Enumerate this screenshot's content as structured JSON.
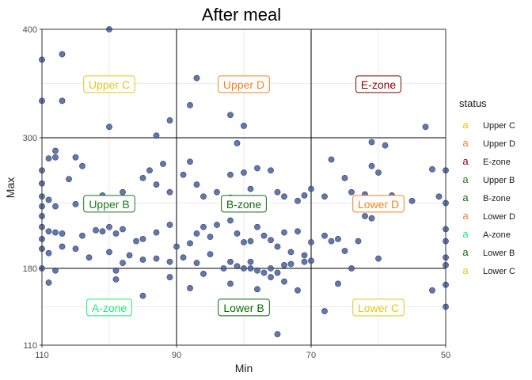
{
  "chart_data": {
    "type": "scatter",
    "title": "After meal",
    "xlabel": "Min",
    "ylabel": "Max",
    "x_reversed": true,
    "xlim": [
      110,
      50
    ],
    "x_ticks": [
      "110",
      "90",
      "70",
      "50"
    ],
    "y_ticks": [
      "400",
      "300",
      "180",
      "110"
    ],
    "y_tick_values": [
      400,
      300,
      180,
      110
    ],
    "x_breaks": [
      90,
      70
    ],
    "y_breaks": [
      300,
      180
    ],
    "grid": true,
    "legend_placement": "right",
    "point_color": "#4a5f9a",
    "legend": {
      "title": "status",
      "key_glyph": "a",
      "items": [
        {
          "label": "Upper C",
          "color": "#e6c619"
        },
        {
          "label": "Upper D",
          "color": "#f5821f"
        },
        {
          "label": "E-zone",
          "color": "#8b0000"
        },
        {
          "label": "Upper B",
          "color": "#1a7a1a"
        },
        {
          "label": "B-zone",
          "color": "#0f6b0f"
        },
        {
          "label": "Lower D",
          "color": "#f5821f"
        },
        {
          "label": "A-zone",
          "color": "#1aed7a"
        },
        {
          "label": "Lower B",
          "color": "#0a6b0a"
        },
        {
          "label": "Lower C",
          "color": "#e6c619"
        }
      ]
    },
    "zone_labels": [
      {
        "text": "Upper C",
        "x": 100,
        "y": 349,
        "color": "#e6c619"
      },
      {
        "text": "Upper D",
        "x": 80,
        "y": 349,
        "color": "#f5821f"
      },
      {
        "text": "E-zone",
        "x": 60,
        "y": 349,
        "color": "#8b0000"
      },
      {
        "text": "Upper B",
        "x": 100,
        "y": 239,
        "color": "#1a7a1a"
      },
      {
        "text": "B-zone",
        "x": 80,
        "y": 239,
        "color": "#0f6b0f"
      },
      {
        "text": "Lower D",
        "x": 60,
        "y": 239,
        "color": "#f5821f"
      },
      {
        "text": "A-zone",
        "x": 100,
        "y": 144,
        "color": "#1aed7a"
      },
      {
        "text": "Lower B",
        "x": 80,
        "y": 144,
        "color": "#0a6b0a"
      },
      {
        "text": "Lower C",
        "x": 60,
        "y": 144,
        "color": "#e6c619"
      }
    ],
    "points": [
      [
        100,
        400
      ],
      [
        110,
        372
      ],
      [
        107,
        377
      ],
      [
        107,
        334
      ],
      [
        110,
        334
      ],
      [
        100,
        310
      ],
      [
        91,
        316
      ],
      [
        93,
        302
      ],
      [
        88,
        330
      ],
      [
        87,
        355
      ],
      [
        82,
        321
      ],
      [
        80,
        311
      ],
      [
        81,
        295
      ],
      [
        53,
        310
      ],
      [
        61,
        296
      ],
      [
        59,
        293
      ],
      [
        108,
        288
      ],
      [
        108,
        282
      ],
      [
        109,
        281
      ],
      [
        105,
        282
      ],
      [
        104,
        274
      ],
      [
        110,
        270
      ],
      [
        106,
        262
      ],
      [
        110,
        258
      ],
      [
        110,
        246
      ],
      [
        109,
        243
      ],
      [
        110,
        237
      ],
      [
        108,
        237
      ],
      [
        105,
        239
      ],
      [
        103,
        238
      ],
      [
        102,
        242
      ],
      [
        101,
        247
      ],
      [
        98,
        250
      ],
      [
        97,
        244
      ],
      [
        95,
        263
      ],
      [
        94,
        270
      ],
      [
        92,
        276
      ],
      [
        93,
        257
      ],
      [
        91,
        250
      ],
      [
        89,
        266
      ],
      [
        88,
        278
      ],
      [
        87,
        257
      ],
      [
        86,
        246
      ],
      [
        84,
        250
      ],
      [
        82,
        266
      ],
      [
        82,
        245
      ],
      [
        80,
        268
      ],
      [
        79,
        253
      ],
      [
        78,
        272
      ],
      [
        76,
        270
      ],
      [
        75,
        250
      ],
      [
        74,
        246
      ],
      [
        72,
        242
      ],
      [
        71,
        247
      ],
      [
        70,
        253
      ],
      [
        68,
        246
      ],
      [
        67,
        280
      ],
      [
        65,
        263
      ],
      [
        64,
        250
      ],
      [
        62,
        248
      ],
      [
        61,
        274
      ],
      [
        60,
        268
      ],
      [
        58,
        247
      ],
      [
        55,
        242
      ],
      [
        52,
        271
      ],
      [
        50,
        270
      ],
      [
        51,
        246
      ],
      [
        50,
        240
      ],
      [
        110,
        228
      ],
      [
        110,
        218
      ],
      [
        109,
        214
      ],
      [
        108,
        213
      ],
      [
        107,
        212
      ],
      [
        110,
        207
      ],
      [
        104,
        210
      ],
      [
        102,
        215
      ],
      [
        101,
        214
      ],
      [
        100,
        218
      ],
      [
        99,
        212
      ],
      [
        98,
        216
      ],
      [
        96,
        205
      ],
      [
        95,
        207
      ],
      [
        93,
        213
      ],
      [
        91,
        220
      ],
      [
        90,
        200
      ],
      [
        88,
        203
      ],
      [
        87,
        212
      ],
      [
        86,
        218
      ],
      [
        85,
        209
      ],
      [
        84,
        220
      ],
      [
        82,
        224
      ],
      [
        81,
        212
      ],
      [
        80,
        204
      ],
      [
        79,
        205
      ],
      [
        78,
        218
      ],
      [
        77,
        210
      ],
      [
        76,
        206
      ],
      [
        75,
        200
      ],
      [
        74,
        213
      ],
      [
        73,
        195
      ],
      [
        72,
        214
      ],
      [
        71,
        192
      ],
      [
        70,
        204
      ],
      [
        68,
        210
      ],
      [
        67,
        205
      ],
      [
        66,
        207
      ],
      [
        65,
        196
      ],
      [
        63,
        205
      ],
      [
        62,
        228
      ],
      [
        61,
        226
      ],
      [
        50,
        205
      ],
      [
        50,
        216
      ],
      [
        110,
        198
      ],
      [
        109,
        194
      ],
      [
        107,
        200
      ],
      [
        105,
        198
      ],
      [
        103,
        190
      ],
      [
        100,
        195
      ],
      [
        98,
        185
      ],
      [
        97,
        192
      ],
      [
        95,
        188
      ],
      [
        93,
        189
      ],
      [
        91,
        186
      ],
      [
        89,
        190
      ],
      [
        87,
        185
      ],
      [
        85,
        193
      ],
      [
        83,
        180
      ],
      [
        82,
        186
      ],
      [
        81,
        182
      ],
      [
        80,
        180
      ],
      [
        79,
        186
      ],
      [
        78,
        178
      ],
      [
        76,
        180
      ],
      [
        75,
        176
      ],
      [
        74,
        183
      ],
      [
        73,
        184
      ],
      [
        71,
        186
      ],
      [
        70,
        187
      ],
      [
        64,
        180
      ],
      [
        60,
        189
      ],
      [
        50,
        183
      ],
      [
        50,
        190
      ],
      [
        110,
        180
      ],
      [
        108,
        178
      ],
      [
        109,
        167
      ],
      [
        99,
        170
      ],
      [
        91,
        172
      ],
      [
        86,
        175
      ],
      [
        88,
        162
      ],
      [
        82,
        166
      ],
      [
        79,
        180
      ],
      [
        77,
        176
      ],
      [
        76,
        172
      ],
      [
        74,
        168
      ],
      [
        66,
        166
      ],
      [
        52,
        160
      ],
      [
        50,
        165
      ],
      [
        95,
        155
      ],
      [
        81,
        148
      ],
      [
        77,
        142
      ],
      [
        75,
        120
      ],
      [
        68,
        141
      ],
      [
        62,
        146
      ],
      [
        58,
        143
      ],
      [
        50,
        145
      ],
      [
        99,
        178
      ],
      [
        78,
        161
      ],
      [
        72,
        160
      ]
    ]
  }
}
